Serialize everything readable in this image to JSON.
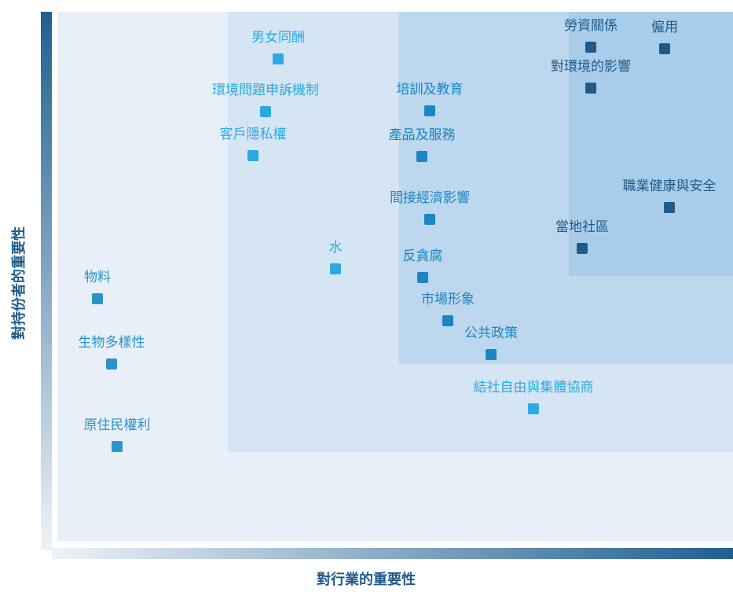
{
  "axes": {
    "y_label": "對持份者的重要性",
    "x_label": "對行業的重要性"
  },
  "nodes": [
    {
      "label": "男女同酬",
      "color": "#29abe2"
    },
    {
      "label": "環境問題申訴機制",
      "color": "#29abe2"
    },
    {
      "label": "客戶隱私權",
      "color": "#29abe2"
    },
    {
      "label": "培訓及教育",
      "color": "#1b86c4"
    },
    {
      "label": "產品及服務",
      "color": "#1b86c4"
    },
    {
      "label": "間接經濟影響",
      "color": "#1b86c4"
    },
    {
      "label": "水",
      "color": "#29abe2"
    },
    {
      "label": "反貪腐",
      "color": "#1b86c4"
    },
    {
      "label": "市場形象",
      "color": "#1b86c4"
    },
    {
      "label": "公共政策",
      "color": "#1b86c4"
    },
    {
      "label": "結社自由與集體協商",
      "color": "#29abe2"
    },
    {
      "label": "勞資關係",
      "color": "#1f5a8a"
    },
    {
      "label": "僱用",
      "color": "#1f5a8a"
    },
    {
      "label": "對環境的影響",
      "color": "#1f5a8a"
    },
    {
      "label": "職業健康與安全",
      "color": "#1f5a8a"
    },
    {
      "label": "當地社區",
      "color": "#1f5a8a"
    },
    {
      "label": "物料",
      "color": "#2a93c9"
    },
    {
      "label": "生物多樣性",
      "color": "#2a93c9"
    },
    {
      "label": "原住民權利",
      "color": "#2a93c9"
    }
  ]
}
